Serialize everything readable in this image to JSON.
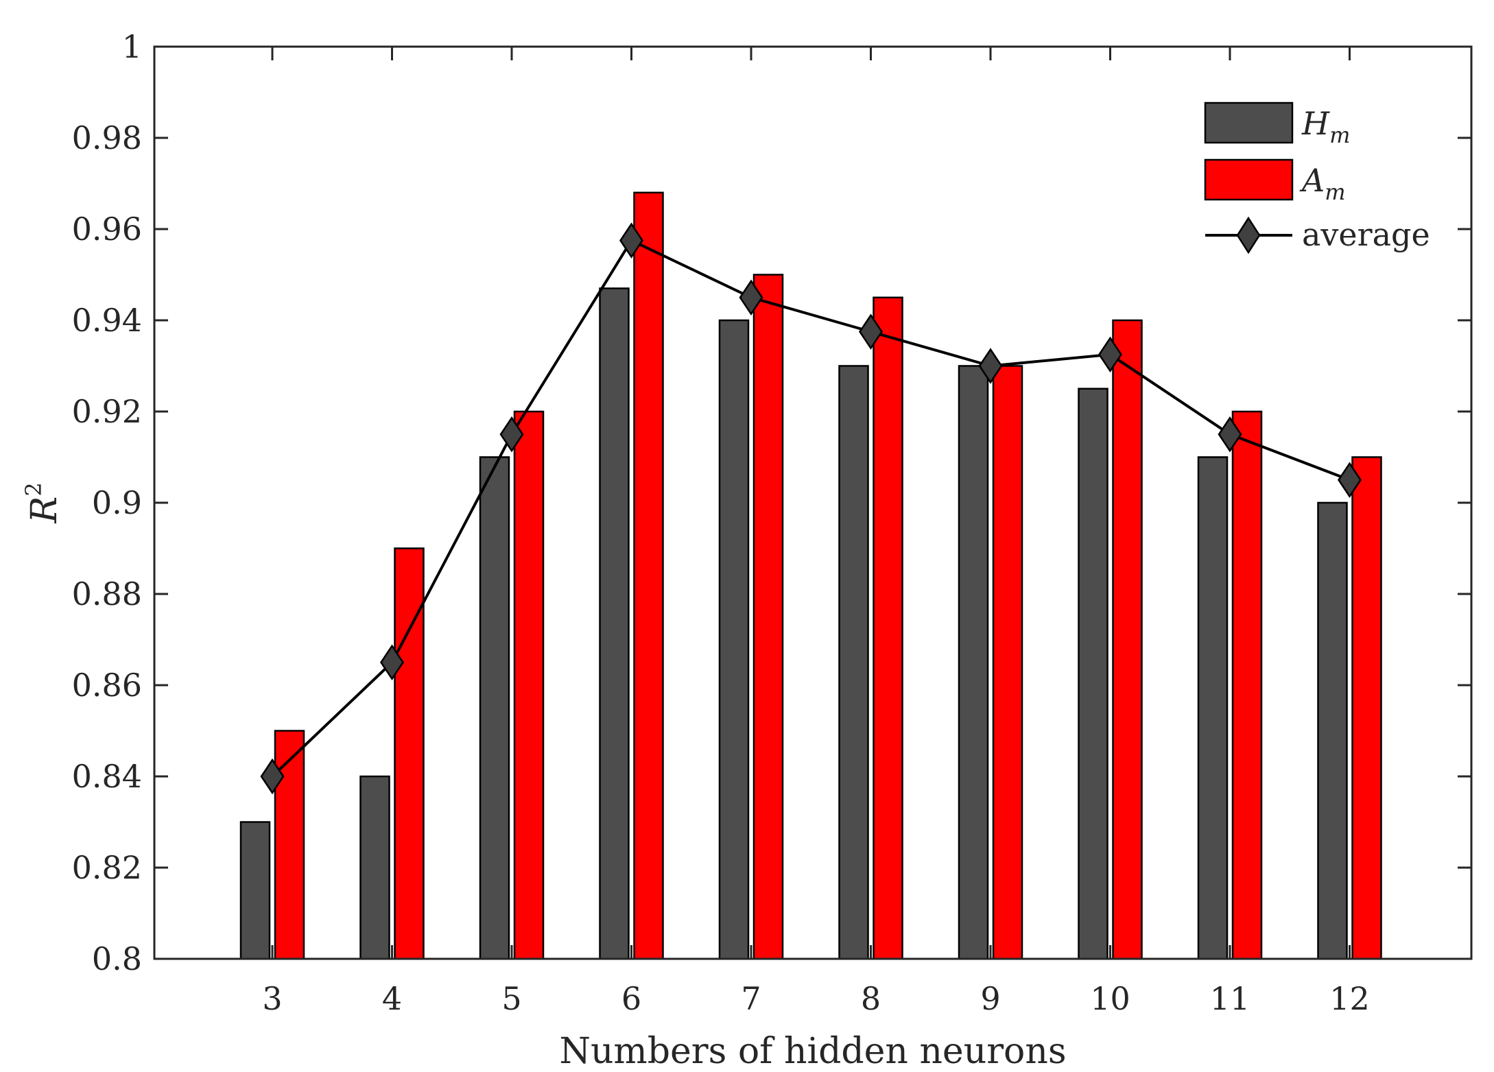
{
  "chart_data": {
    "type": "bar",
    "xlabel": "Numbers of hidden neurons",
    "ylabel": {
      "base": "R",
      "sup": "2"
    },
    "ylim": [
      0.8,
      1.0
    ],
    "yticks": [
      "0.8",
      "0.82",
      "0.84",
      "0.86",
      "0.88",
      "0.9",
      "0.92",
      "0.94",
      "0.96",
      "0.98",
      "1"
    ],
    "categories": [
      "3",
      "4",
      "5",
      "6",
      "7",
      "8",
      "9",
      "10",
      "11",
      "12"
    ],
    "series": [
      {
        "name": "H",
        "sub": "m",
        "kind": "bar",
        "color": "#4d4d4d",
        "values": [
          0.83,
          0.84,
          0.91,
          0.947,
          0.94,
          0.93,
          0.93,
          0.925,
          0.91,
          0.9
        ]
      },
      {
        "name": "A",
        "sub": "m",
        "kind": "bar",
        "color": "#ff0000",
        "values": [
          0.85,
          0.89,
          0.92,
          0.968,
          0.95,
          0.945,
          0.93,
          0.94,
          0.92,
          0.91
        ]
      },
      {
        "name": "average",
        "kind": "line",
        "marker": "diamond",
        "color": "#000000",
        "marker_fill": "#404040",
        "values": [
          0.84,
          0.865,
          0.915,
          0.9575,
          0.945,
          0.9375,
          0.93,
          0.9325,
          0.915,
          0.905
        ]
      }
    ],
    "legend_position": "top-right",
    "grid": false
  }
}
